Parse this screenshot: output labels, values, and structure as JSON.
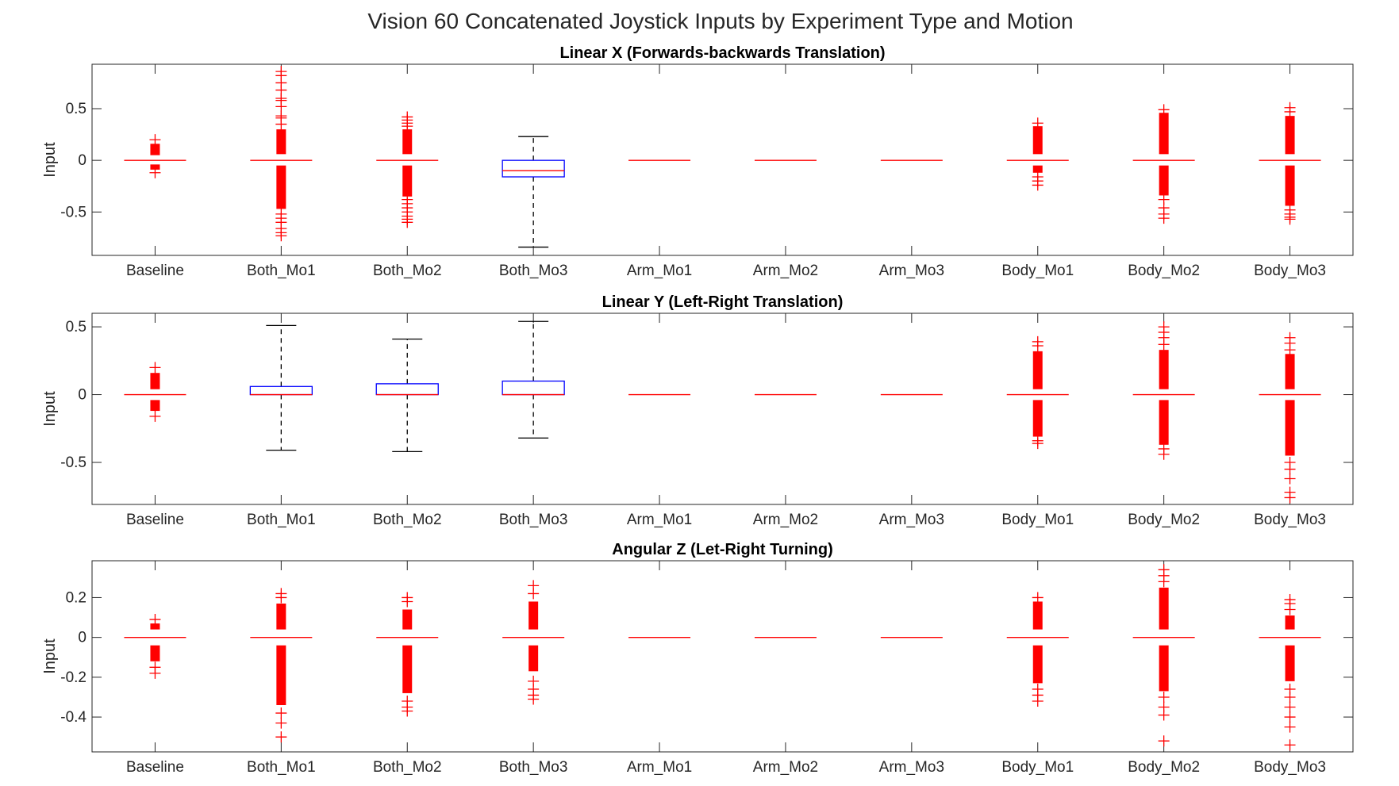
{
  "suptitle": "Vision 60 Concatenated Joystick Inputs by Experiment Type and Motion",
  "colors": {
    "box": "#0000ff",
    "median": "#ff0000",
    "whisker": "#000000",
    "outlier": "#ff0000",
    "axes": "#262626"
  },
  "chart_data": [
    {
      "type": "box",
      "title": "Linear X (Forwards-backwards Translation)",
      "ylabel": "Input",
      "ylim": [
        -0.92,
        0.93
      ],
      "yticks": [
        -0.5,
        0,
        0.5
      ],
      "yticklabels": [
        "-0.5",
        "0",
        "0.5"
      ],
      "categories": [
        "Baseline",
        "Both_Mo1",
        "Both_Mo2",
        "Both_Mo3",
        "Arm_Mo1",
        "Arm_Mo2",
        "Arm_Mo3",
        "Body_Mo1",
        "Body_Mo2",
        "Body_Mo3"
      ],
      "boxes": [
        {
          "q1": 0,
          "median": 0,
          "q3": 0,
          "whisker_low": 0,
          "whisker_high": 0,
          "outlier_ranges": [
            [
              0.05,
              0.16
            ],
            [
              -0.09,
              -0.04
            ]
          ],
          "outlier_points": [
            0.2,
            -0.12
          ]
        },
        {
          "q1": 0,
          "median": 0,
          "q3": 0,
          "whisker_low": 0,
          "whisker_high": 0,
          "outlier_ranges": [
            [
              0.06,
              0.3
            ],
            [
              -0.47,
              -0.05
            ]
          ],
          "outlier_points": [
            0.35,
            0.41,
            0.43,
            0.52,
            0.58,
            0.6,
            0.68,
            0.75,
            0.82,
            0.86,
            -0.52,
            -0.56,
            -0.6,
            -0.66,
            -0.7,
            -0.73
          ]
        },
        {
          "q1": 0,
          "median": 0,
          "q3": 0,
          "whisker_low": 0,
          "whisker_high": 0,
          "outlier_ranges": [
            [
              0.06,
              0.3
            ],
            [
              -0.35,
              -0.05
            ]
          ],
          "outlier_points": [
            0.33,
            0.36,
            0.39,
            0.42,
            -0.38,
            -0.42,
            -0.46,
            -0.5,
            -0.54,
            -0.57,
            -0.6
          ]
        },
        {
          "q1": -0.16,
          "median": -0.1,
          "q3": 0,
          "whisker_low": -0.84,
          "whisker_high": 0.23,
          "outlier_ranges": [],
          "outlier_points": []
        },
        {
          "q1": 0,
          "median": 0,
          "q3": 0,
          "whisker_low": 0,
          "whisker_high": 0,
          "outlier_ranges": [],
          "outlier_points": []
        },
        {
          "q1": 0,
          "median": 0,
          "q3": 0,
          "whisker_low": 0,
          "whisker_high": 0,
          "outlier_ranges": [],
          "outlier_points": []
        },
        {
          "q1": 0,
          "median": 0,
          "q3": 0,
          "whisker_low": 0,
          "whisker_high": 0,
          "outlier_ranges": [],
          "outlier_points": []
        },
        {
          "q1": 0,
          "median": 0,
          "q3": 0,
          "whisker_low": 0,
          "whisker_high": 0,
          "outlier_ranges": [
            [
              0.06,
              0.33
            ],
            [
              -0.12,
              -0.05
            ]
          ],
          "outlier_points": [
            0.36,
            -0.16,
            -0.2,
            -0.24
          ]
        },
        {
          "q1": 0,
          "median": 0,
          "q3": 0,
          "whisker_low": 0,
          "whisker_high": 0,
          "outlier_ranges": [
            [
              0.06,
              0.46
            ],
            [
              -0.34,
              -0.05
            ]
          ],
          "outlier_points": [
            0.49,
            -0.38,
            -0.46,
            -0.52,
            -0.56
          ]
        },
        {
          "q1": 0,
          "median": 0,
          "q3": 0,
          "whisker_low": 0,
          "whisker_high": 0,
          "outlier_ranges": [
            [
              0.06,
              0.43
            ],
            [
              -0.44,
              -0.05
            ]
          ],
          "outlier_points": [
            0.47,
            0.51,
            -0.48,
            -0.52,
            -0.55,
            -0.57
          ]
        }
      ]
    },
    {
      "type": "box",
      "title": "Linear Y (Left-Right Translation)",
      "ylabel": "Input",
      "ylim": [
        -0.81,
        0.6
      ],
      "yticks": [
        -0.5,
        0,
        0.5
      ],
      "yticklabels": [
        "-0.5",
        "0",
        "0.5"
      ],
      "categories": [
        "Baseline",
        "Both_Mo1",
        "Both_Mo2",
        "Both_Mo3",
        "Arm_Mo1",
        "Arm_Mo2",
        "Arm_Mo3",
        "Body_Mo1",
        "Body_Mo2",
        "Body_Mo3"
      ],
      "boxes": [
        {
          "q1": 0,
          "median": 0,
          "q3": 0,
          "whisker_low": 0,
          "whisker_high": 0,
          "outlier_ranges": [
            [
              0.04,
              0.16
            ],
            [
              -0.12,
              -0.04
            ]
          ],
          "outlier_points": [
            0.2,
            -0.16
          ]
        },
        {
          "q1": 0,
          "median": 0,
          "q3": 0.06,
          "whisker_low": -0.41,
          "whisker_high": 0.51,
          "outlier_ranges": [],
          "outlier_points": []
        },
        {
          "q1": 0,
          "median": 0,
          "q3": 0.08,
          "whisker_low": -0.42,
          "whisker_high": 0.41,
          "outlier_ranges": [],
          "outlier_points": []
        },
        {
          "q1": 0,
          "median": 0,
          "q3": 0.1,
          "whisker_low": -0.32,
          "whisker_high": 0.54,
          "outlier_ranges": [],
          "outlier_points": []
        },
        {
          "q1": 0,
          "median": 0,
          "q3": 0,
          "whisker_low": 0,
          "whisker_high": 0,
          "outlier_ranges": [],
          "outlier_points": []
        },
        {
          "q1": 0,
          "median": 0,
          "q3": 0,
          "whisker_low": 0,
          "whisker_high": 0,
          "outlier_ranges": [],
          "outlier_points": []
        },
        {
          "q1": 0,
          "median": 0,
          "q3": 0,
          "whisker_low": 0,
          "whisker_high": 0,
          "outlier_ranges": [],
          "outlier_points": []
        },
        {
          "q1": 0,
          "median": 0,
          "q3": 0,
          "whisker_low": 0,
          "whisker_high": 0,
          "outlier_ranges": [
            [
              0.04,
              0.32
            ],
            [
              -0.31,
              -0.04
            ]
          ],
          "outlier_points": [
            0.36,
            0.39,
            -0.34,
            -0.36
          ]
        },
        {
          "q1": 0,
          "median": 0,
          "q3": 0,
          "whisker_low": 0,
          "whisker_high": 0,
          "outlier_ranges": [
            [
              0.04,
              0.33
            ],
            [
              -0.37,
              -0.04
            ]
          ],
          "outlier_points": [
            0.37,
            0.42,
            0.46,
            0.5,
            -0.4,
            -0.44
          ]
        },
        {
          "q1": 0,
          "median": 0,
          "q3": 0,
          "whisker_low": 0,
          "whisker_high": 0,
          "outlier_ranges": [
            [
              0.04,
              0.3
            ],
            [
              -0.45,
              -0.04
            ]
          ],
          "outlier_points": [
            0.33,
            0.38,
            0.42,
            -0.5,
            -0.55,
            -0.62,
            -0.72,
            -0.76
          ]
        }
      ]
    },
    {
      "type": "box",
      "title": "Angular Z (Let-Right Turning)",
      "ylabel": "Input",
      "ylim": [
        -0.575,
        0.385
      ],
      "yticks": [
        -0.4,
        -0.2,
        0,
        0.2
      ],
      "yticklabels": [
        "-0.4",
        "-0.2",
        "0",
        "0.2"
      ],
      "categories": [
        "Baseline",
        "Both_Mo1",
        "Both_Mo2",
        "Both_Mo3",
        "Arm_Mo1",
        "Arm_Mo2",
        "Arm_Mo3",
        "Body_Mo1",
        "Body_Mo2",
        "Body_Mo3"
      ],
      "boxes": [
        {
          "q1": 0,
          "median": 0,
          "q3": 0,
          "whisker_low": 0,
          "whisker_high": 0,
          "outlier_ranges": [
            [
              0.04,
              0.07
            ],
            [
              -0.12,
              -0.04
            ]
          ],
          "outlier_points": [
            0.09,
            -0.15,
            -0.18
          ]
        },
        {
          "q1": 0,
          "median": 0,
          "q3": 0,
          "whisker_low": 0,
          "whisker_high": 0,
          "outlier_ranges": [
            [
              0.04,
              0.17
            ],
            [
              -0.34,
              -0.04
            ]
          ],
          "outlier_points": [
            0.2,
            0.22,
            -0.38,
            -0.43,
            -0.5
          ]
        },
        {
          "q1": 0,
          "median": 0,
          "q3": 0,
          "whisker_low": 0,
          "whisker_high": 0,
          "outlier_ranges": [
            [
              0.04,
              0.14
            ],
            [
              -0.28,
              -0.04
            ]
          ],
          "outlier_points": [
            0.18,
            0.2,
            -0.32,
            -0.35,
            -0.37
          ]
        },
        {
          "q1": 0,
          "median": 0,
          "q3": 0,
          "whisker_low": 0,
          "whisker_high": 0,
          "outlier_ranges": [
            [
              0.04,
              0.18
            ],
            [
              -0.17,
              -0.04
            ]
          ],
          "outlier_points": [
            0.22,
            0.26,
            -0.22,
            -0.26,
            -0.29,
            -0.31
          ]
        },
        {
          "q1": 0,
          "median": 0,
          "q3": 0,
          "whisker_low": 0,
          "whisker_high": 0,
          "outlier_ranges": [],
          "outlier_points": []
        },
        {
          "q1": 0,
          "median": 0,
          "q3": 0,
          "whisker_low": 0,
          "whisker_high": 0,
          "outlier_ranges": [],
          "outlier_points": []
        },
        {
          "q1": 0,
          "median": 0,
          "q3": 0,
          "whisker_low": 0,
          "whisker_high": 0,
          "outlier_ranges": [],
          "outlier_points": []
        },
        {
          "q1": 0,
          "median": 0,
          "q3": 0,
          "whisker_low": 0,
          "whisker_high": 0,
          "outlier_ranges": [
            [
              0.04,
              0.18
            ],
            [
              -0.23,
              -0.04
            ]
          ],
          "outlier_points": [
            0.2,
            -0.26,
            -0.29,
            -0.32
          ]
        },
        {
          "q1": 0,
          "median": 0,
          "q3": 0,
          "whisker_low": 0,
          "whisker_high": 0,
          "outlier_ranges": [
            [
              0.04,
              0.25
            ],
            [
              -0.27,
              -0.04
            ]
          ],
          "outlier_points": [
            0.28,
            0.31,
            0.34,
            -0.3,
            -0.35,
            -0.39,
            -0.52
          ]
        },
        {
          "q1": 0,
          "median": 0,
          "q3": 0,
          "whisker_low": 0,
          "whisker_high": 0,
          "outlier_ranges": [
            [
              0.04,
              0.11
            ],
            [
              -0.22,
              -0.04
            ]
          ],
          "outlier_points": [
            0.14,
            0.17,
            0.19,
            -0.26,
            -0.3,
            -0.35,
            -0.4,
            -0.45,
            -0.54
          ]
        }
      ]
    }
  ]
}
